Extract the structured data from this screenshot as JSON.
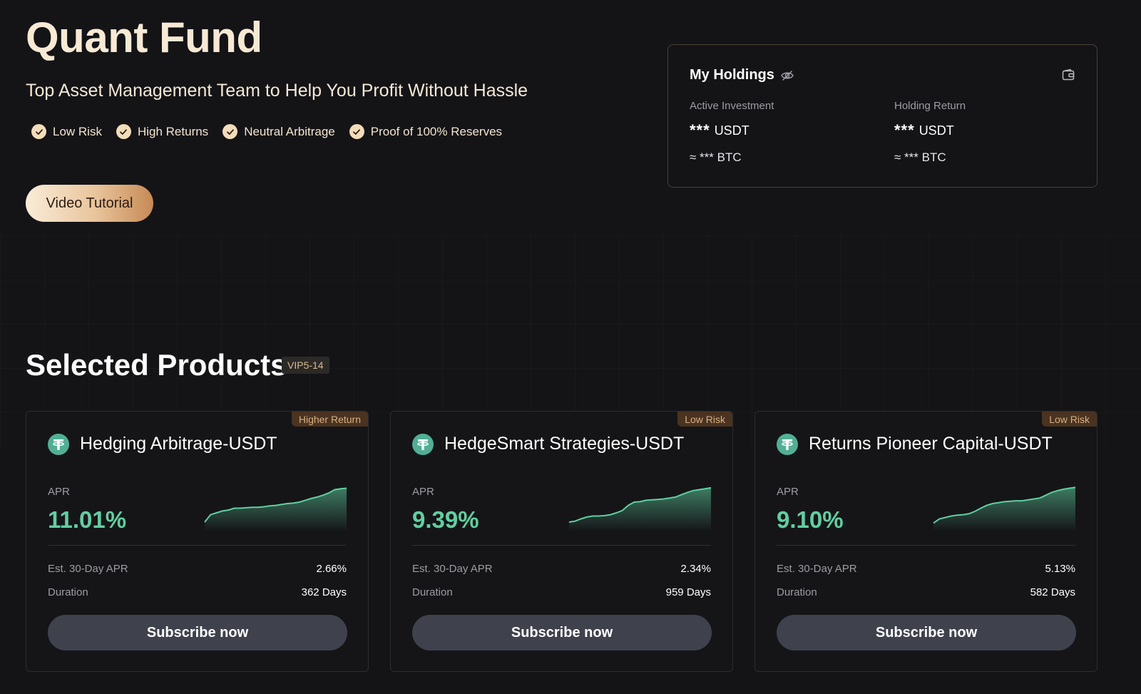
{
  "hero": {
    "title": "Quant Fund",
    "subtitle": "Top Asset Management Team to Help You Profit Without Hassle",
    "features": [
      "Low Risk",
      "High Returns",
      "Neutral Arbitrage",
      "Proof of 100% Reserves"
    ],
    "video_button": "Video Tutorial"
  },
  "holdings": {
    "title": "My Holdings",
    "active_label": "Active Investment",
    "active_mask": "***",
    "active_unit": "USDT",
    "active_btc": "≈ *** BTC",
    "return_label": "Holding Return",
    "return_mask": "***",
    "return_unit": "USDT",
    "return_btc": "≈ *** BTC"
  },
  "section": {
    "title": "Selected Products",
    "vip": "VIP5-14"
  },
  "colors": {
    "accent_green": "#5fd0a0",
    "coin": "#50af95",
    "tag_bg": "#4a3320",
    "tag_text": "#d8b083"
  },
  "products": [
    {
      "tag": "Higher Return",
      "name": "Hedging Arbitrage-USDT",
      "apr_label": "APR",
      "apr": "11.01%",
      "est_label": "Est. 30-Day APR",
      "est": "2.66%",
      "duration_label": "Duration",
      "duration": "362 Days",
      "button": "Subscribe now",
      "trend": [
        0.2,
        0.36,
        0.4,
        0.44,
        0.46,
        0.5,
        0.5,
        0.51,
        0.52,
        0.52,
        0.53,
        0.55,
        0.56,
        0.58,
        0.6,
        0.61,
        0.63,
        0.67,
        0.71,
        0.74,
        0.78,
        0.83,
        0.9,
        0.92,
        0.93
      ]
    },
    {
      "tag": "Low Risk",
      "name": "HedgeSmart Strategies-USDT",
      "apr_label": "APR",
      "apr": "9.39%",
      "est_label": "Est. 30-Day APR",
      "est": "2.34%",
      "duration_label": "Duration",
      "duration": "959 Days",
      "button": "Subscribe now",
      "trend": [
        0.2,
        0.22,
        0.27,
        0.31,
        0.33,
        0.33,
        0.34,
        0.36,
        0.4,
        0.45,
        0.56,
        0.63,
        0.64,
        0.67,
        0.68,
        0.69,
        0.7,
        0.72,
        0.74,
        0.79,
        0.84,
        0.88,
        0.9,
        0.92,
        0.94
      ]
    },
    {
      "tag": "Low Risk",
      "name": "Returns Pioneer Capital-USDT",
      "apr_label": "APR",
      "apr": "9.10%",
      "est_label": "Est. 30-Day APR",
      "est": "5.13%",
      "duration_label": "Duration",
      "duration": "582 Days",
      "button": "Subscribe now",
      "trend": [
        0.18,
        0.27,
        0.3,
        0.33,
        0.35,
        0.36,
        0.38,
        0.43,
        0.5,
        0.56,
        0.6,
        0.62,
        0.64,
        0.65,
        0.66,
        0.66,
        0.68,
        0.7,
        0.72,
        0.78,
        0.84,
        0.88,
        0.91,
        0.93,
        0.95
      ]
    }
  ]
}
